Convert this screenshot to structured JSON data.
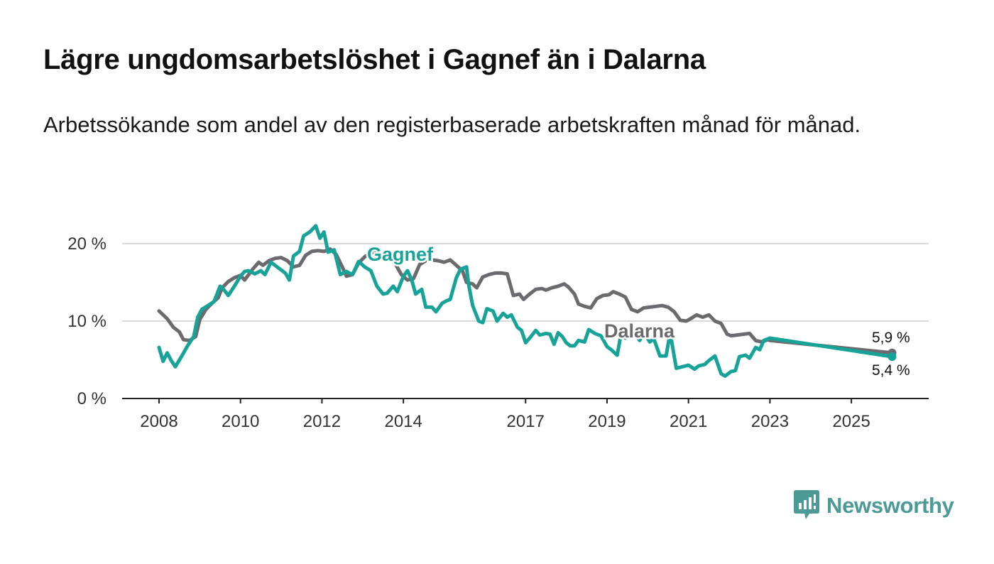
{
  "header": {
    "title": "Lägre ungdomsarbetslöshet i Gagnef än i Dalarna",
    "subtitle": "Arbetssökande som andel av den registerbaserade arbetskraften månad för månad."
  },
  "brand": {
    "name": "Newsworthy",
    "icon": "newsworthy-logo-icon",
    "color": "#4b9a95"
  },
  "chart_data": {
    "type": "line",
    "title": "Lägre ungdomsarbetslöshet i Gagnef än i Dalarna",
    "subtitle": "Arbetssökande som andel av den registerbaserade arbetskraften månad för månad.",
    "xlabel": "",
    "ylabel": "",
    "xlim": [
      2008,
      2026.2
    ],
    "ylim": [
      0,
      22
    ],
    "y_ticks": [
      0,
      10,
      20
    ],
    "y_tick_labels": [
      "0 %",
      "10 %",
      "20 %"
    ],
    "x_ticks": [
      2008,
      2010,
      2012,
      2014,
      2017,
      2019,
      2021,
      2023,
      2025
    ],
    "x_tick_labels": [
      "2008",
      "2010",
      "2012",
      "2014",
      "2017",
      "2019",
      "2021",
      "2023",
      "2025"
    ],
    "grid": true,
    "series": [
      {
        "name": "Dalarna",
        "color": "#6c6a6e",
        "end_value_label": "5,9 %",
        "points": [
          [
            2008.0,
            11.3
          ],
          [
            2008.2,
            10.3
          ],
          [
            2008.35,
            9.2
          ],
          [
            2008.5,
            8.6
          ],
          [
            2008.6,
            7.6
          ],
          [
            2008.75,
            7.5
          ],
          [
            2008.9,
            8.0
          ],
          [
            2009.0,
            10.2
          ],
          [
            2009.15,
            11.5
          ],
          [
            2009.3,
            12.3
          ],
          [
            2009.45,
            13.0
          ],
          [
            2009.55,
            14.3
          ],
          [
            2009.7,
            15.1
          ],
          [
            2009.85,
            15.6
          ],
          [
            2010.0,
            15.9
          ],
          [
            2010.1,
            15.3
          ],
          [
            2010.2,
            16.0
          ],
          [
            2010.3,
            16.7
          ],
          [
            2010.45,
            17.6
          ],
          [
            2010.55,
            17.2
          ],
          [
            2010.7,
            17.8
          ],
          [
            2010.85,
            18.1
          ],
          [
            2011.0,
            18.2
          ],
          [
            2011.15,
            17.8
          ],
          [
            2011.3,
            17.0
          ],
          [
            2011.45,
            17.2
          ],
          [
            2011.6,
            18.5
          ],
          [
            2011.75,
            19.0
          ],
          [
            2011.9,
            19.1
          ],
          [
            2012.05,
            19.0
          ],
          [
            2012.2,
            19.3
          ],
          [
            2012.35,
            18.6
          ],
          [
            2012.5,
            17.0
          ],
          [
            2012.6,
            15.8
          ],
          [
            2012.75,
            16.0
          ],
          [
            2012.9,
            17.5
          ],
          [
            2013.05,
            18.3
          ],
          [
            2013.2,
            18.8
          ],
          [
            2013.35,
            19.0
          ],
          [
            2013.5,
            18.5
          ],
          [
            2013.65,
            18.3
          ],
          [
            2013.8,
            17.4
          ],
          [
            2013.95,
            16.0
          ],
          [
            2014.1,
            15.3
          ],
          [
            2014.25,
            15.5
          ],
          [
            2014.4,
            17.3
          ],
          [
            2014.55,
            17.8
          ],
          [
            2014.7,
            17.9
          ],
          [
            2014.85,
            17.8
          ],
          [
            2015.0,
            17.6
          ],
          [
            2015.15,
            17.9
          ],
          [
            2015.3,
            17.2
          ],
          [
            2015.45,
            16.5
          ],
          [
            2015.55,
            15.0
          ],
          [
            2015.7,
            14.8
          ],
          [
            2015.8,
            14.3
          ],
          [
            2015.95,
            15.7
          ],
          [
            2016.1,
            16.0
          ],
          [
            2016.25,
            16.2
          ],
          [
            2016.4,
            16.2
          ],
          [
            2016.55,
            16.1
          ],
          [
            2016.7,
            13.3
          ],
          [
            2016.85,
            13.5
          ],
          [
            2016.95,
            12.8
          ],
          [
            2017.1,
            13.5
          ],
          [
            2017.25,
            14.1
          ],
          [
            2017.4,
            14.2
          ],
          [
            2017.5,
            14.0
          ],
          [
            2017.65,
            14.3
          ],
          [
            2017.8,
            14.5
          ],
          [
            2017.95,
            14.8
          ],
          [
            2018.05,
            14.4
          ],
          [
            2018.2,
            13.5
          ],
          [
            2018.3,
            12.2
          ],
          [
            2018.45,
            11.9
          ],
          [
            2018.6,
            11.7
          ],
          [
            2018.75,
            12.9
          ],
          [
            2018.9,
            13.3
          ],
          [
            2019.05,
            13.4
          ],
          [
            2019.15,
            13.8
          ],
          [
            2019.3,
            13.5
          ],
          [
            2019.45,
            13.1
          ],
          [
            2019.6,
            11.5
          ],
          [
            2019.75,
            11.2
          ],
          [
            2019.9,
            11.7
          ],
          [
            2020.05,
            11.8
          ],
          [
            2020.2,
            11.9
          ],
          [
            2020.35,
            12.0
          ],
          [
            2020.5,
            11.8
          ],
          [
            2020.65,
            11.2
          ],
          [
            2020.8,
            10.1
          ],
          [
            2020.95,
            10.0
          ],
          [
            2021.05,
            10.3
          ],
          [
            2021.2,
            10.8
          ],
          [
            2021.35,
            10.5
          ],
          [
            2021.5,
            10.8
          ],
          [
            2021.65,
            10.0
          ],
          [
            2021.8,
            9.7
          ],
          [
            2021.95,
            8.3
          ],
          [
            2022.05,
            8.1
          ],
          [
            2022.2,
            8.2
          ],
          [
            2022.35,
            8.3
          ],
          [
            2022.5,
            8.4
          ],
          [
            2022.65,
            7.5
          ],
          [
            2022.8,
            7.3
          ],
          [
            2022.95,
            7.6
          ],
          [
            2023.0,
            7.5
          ]
        ],
        "end_value": 5.9
      },
      {
        "name": "Gagnef",
        "color": "#17a398",
        "end_value_label": "5,4 %",
        "points": [
          [
            2008.0,
            6.6
          ],
          [
            2008.1,
            4.8
          ],
          [
            2008.2,
            5.9
          ],
          [
            2008.3,
            4.9
          ],
          [
            2008.4,
            4.1
          ],
          [
            2008.55,
            5.4
          ],
          [
            2008.7,
            6.8
          ],
          [
            2008.85,
            8.0
          ],
          [
            2008.95,
            10.5
          ],
          [
            2009.05,
            11.5
          ],
          [
            2009.2,
            12.0
          ],
          [
            2009.35,
            12.5
          ],
          [
            2009.5,
            14.5
          ],
          [
            2009.6,
            14.0
          ],
          [
            2009.7,
            13.3
          ],
          [
            2009.85,
            14.5
          ],
          [
            2010.0,
            15.8
          ],
          [
            2010.1,
            16.4
          ],
          [
            2010.2,
            16.5
          ],
          [
            2010.35,
            16.1
          ],
          [
            2010.5,
            16.5
          ],
          [
            2010.6,
            16.0
          ],
          [
            2010.75,
            17.6
          ],
          [
            2010.9,
            17.0
          ],
          [
            2011.0,
            16.6
          ],
          [
            2011.1,
            16.2
          ],
          [
            2011.2,
            15.3
          ],
          [
            2011.3,
            18.4
          ],
          [
            2011.45,
            19.0
          ],
          [
            2011.55,
            21.0
          ],
          [
            2011.7,
            21.5
          ],
          [
            2011.85,
            22.3
          ],
          [
            2011.95,
            20.7
          ],
          [
            2012.05,
            21.5
          ],
          [
            2012.15,
            18.9
          ],
          [
            2012.3,
            19.2
          ],
          [
            2012.45,
            16.0
          ],
          [
            2012.6,
            16.4
          ],
          [
            2012.75,
            16.0
          ],
          [
            2012.9,
            17.7
          ],
          [
            2013.05,
            17.0
          ],
          [
            2013.2,
            16.5
          ],
          [
            2013.35,
            14.5
          ],
          [
            2013.5,
            13.5
          ],
          [
            2013.6,
            13.6
          ],
          [
            2013.75,
            14.5
          ],
          [
            2013.85,
            13.8
          ],
          [
            2014.0,
            15.8
          ],
          [
            2014.1,
            16.5
          ],
          [
            2014.2,
            15.4
          ],
          [
            2014.3,
            13.5
          ],
          [
            2014.45,
            14.1
          ],
          [
            2014.55,
            11.8
          ],
          [
            2014.7,
            11.8
          ],
          [
            2014.8,
            11.2
          ],
          [
            2014.95,
            12.3
          ],
          [
            2015.05,
            12.6
          ],
          [
            2015.15,
            12.8
          ],
          [
            2015.3,
            15.6
          ],
          [
            2015.4,
            16.7
          ],
          [
            2015.55,
            17.0
          ],
          [
            2015.6,
            14.8
          ],
          [
            2015.7,
            12.0
          ],
          [
            2015.85,
            10.0
          ],
          [
            2015.95,
            9.8
          ],
          [
            2016.05,
            11.6
          ],
          [
            2016.2,
            11.3
          ],
          [
            2016.3,
            10.0
          ],
          [
            2016.45,
            11.0
          ],
          [
            2016.55,
            10.5
          ],
          [
            2016.65,
            10.8
          ],
          [
            2016.8,
            9.2
          ],
          [
            2016.9,
            8.8
          ],
          [
            2017.0,
            7.2
          ],
          [
            2017.1,
            7.8
          ],
          [
            2017.25,
            8.8
          ],
          [
            2017.35,
            8.2
          ],
          [
            2017.5,
            8.4
          ],
          [
            2017.6,
            8.3
          ],
          [
            2017.7,
            7.0
          ],
          [
            2017.8,
            8.5
          ],
          [
            2017.9,
            8.0
          ],
          [
            2018.0,
            7.2
          ],
          [
            2018.1,
            6.8
          ],
          [
            2018.2,
            6.8
          ],
          [
            2018.3,
            7.5
          ],
          [
            2018.45,
            7.3
          ],
          [
            2018.55,
            8.9
          ],
          [
            2018.7,
            8.4
          ],
          [
            2018.85,
            8.1
          ],
          [
            2019.0,
            6.7
          ],
          [
            2019.1,
            6.3
          ],
          [
            2019.25,
            5.6
          ],
          [
            2019.35,
            8.5
          ],
          [
            2019.45,
            7.8
          ],
          [
            2019.6,
            8.1
          ],
          [
            2019.7,
            8.3
          ],
          [
            2019.8,
            7.5
          ],
          [
            2019.9,
            8.5
          ],
          [
            2020.05,
            7.3
          ],
          [
            2020.15,
            7.7
          ],
          [
            2020.3,
            5.5
          ],
          [
            2020.45,
            5.5
          ],
          [
            2020.55,
            8.5
          ],
          [
            2020.7,
            3.9
          ],
          [
            2020.85,
            4.1
          ],
          [
            2021.0,
            4.3
          ],
          [
            2021.15,
            3.8
          ],
          [
            2021.25,
            4.2
          ],
          [
            2021.4,
            4.4
          ],
          [
            2021.5,
            4.9
          ],
          [
            2021.65,
            5.5
          ],
          [
            2021.8,
            3.2
          ],
          [
            2021.9,
            2.9
          ],
          [
            2022.05,
            3.5
          ],
          [
            2022.15,
            3.6
          ],
          [
            2022.25,
            5.4
          ],
          [
            2022.4,
            5.6
          ],
          [
            2022.5,
            5.2
          ],
          [
            2022.65,
            6.6
          ],
          [
            2022.75,
            6.3
          ],
          [
            2022.85,
            7.5
          ],
          [
            2023.0,
            7.8
          ]
        ],
        "end_value": 5.4
      }
    ]
  }
}
